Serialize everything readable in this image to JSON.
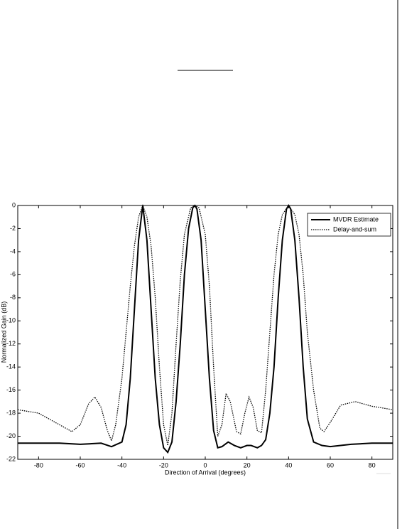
{
  "chart_data": {
    "type": "line",
    "xlabel": "Direction of Arrival (degrees)",
    "ylabel": "Normalized Gain (dB)",
    "xlim": [
      -90,
      90
    ],
    "ylim": [
      -22,
      0
    ],
    "xticks": [
      -80,
      -60,
      -40,
      -20,
      0,
      20,
      40,
      60,
      80
    ],
    "yticks": [
      0,
      -2,
      -4,
      -6,
      -8,
      -10,
      -12,
      -14,
      -16,
      -18,
      -20,
      -22
    ],
    "grid": false,
    "legend": "upper right",
    "series": [
      {
        "name": "MVDR Estimate",
        "color": "#000000",
        "style": "solid",
        "x": [
          -90,
          -70,
          -60,
          -50,
          -45,
          -40,
          -38,
          -36,
          -34,
          -32,
          -30,
          -28,
          -26,
          -24,
          -22,
          -20,
          -18,
          -16,
          -14,
          -12,
          -10,
          -8,
          -6,
          -5,
          -4,
          -2,
          0,
          2,
          4,
          6,
          8,
          11,
          14,
          17,
          20,
          22,
          25,
          27,
          29,
          31,
          33,
          35,
          37,
          39,
          40,
          41,
          43,
          45,
          47,
          49,
          52,
          56,
          60,
          70,
          80,
          90
        ],
        "values": [
          -20.6,
          -20.6,
          -20.7,
          -20.6,
          -20.9,
          -20.5,
          -19,
          -15,
          -9,
          -3,
          0,
          -3,
          -9,
          -15,
          -19,
          -21,
          -21.4,
          -20.5,
          -17,
          -12,
          -6,
          -2,
          -0.2,
          0,
          -0.3,
          -3,
          -9,
          -15,
          -19.5,
          -21,
          -20.9,
          -20.5,
          -20.8,
          -21,
          -20.8,
          -20.8,
          -21,
          -20.8,
          -20.3,
          -18,
          -14,
          -8,
          -3,
          -0.3,
          0,
          -0.3,
          -3,
          -8,
          -14,
          -18.5,
          -20.5,
          -20.8,
          -20.9,
          -20.7,
          -20.6,
          -20.6
        ]
      },
      {
        "name": "Delay-and-sum",
        "color": "#000000",
        "style": "dotted",
        "x": [
          -90,
          -80,
          -70,
          -64,
          -60,
          -56,
          -53,
          -50,
          -47,
          -45,
          -43,
          -40,
          -38,
          -36,
          -34,
          -32,
          -30,
          -28,
          -26,
          -24,
          -22,
          -20,
          -18,
          -16,
          -14,
          -12,
          -10,
          -7,
          -5,
          -3,
          0,
          2,
          4,
          6,
          8,
          10,
          12,
          15,
          17,
          19,
          21,
          23,
          25,
          27,
          29,
          31,
          33,
          35,
          37,
          40,
          43,
          45,
          47,
          49,
          52,
          55,
          57,
          60,
          65,
          72,
          80,
          90
        ],
        "values": [
          -17.7,
          -18,
          -19,
          -19.6,
          -19,
          -17.2,
          -16.6,
          -17.5,
          -19.5,
          -20.4,
          -19,
          -15,
          -11,
          -7,
          -3.5,
          -1,
          0,
          -1,
          -3.5,
          -8,
          -14,
          -19,
          -20.8,
          -18,
          -12,
          -6.5,
          -2.5,
          -0.2,
          0,
          -0.2,
          -2.5,
          -7,
          -14,
          -20,
          -19,
          -16.3,
          -17,
          -19.6,
          -19.8,
          -18,
          -16.6,
          -17.5,
          -19.5,
          -19.7,
          -16,
          -11,
          -6,
          -2.5,
          -0.8,
          0,
          -0.8,
          -2.5,
          -6,
          -11,
          -16,
          -19.3,
          -19.6,
          -18.8,
          -17.3,
          -17,
          -17.4,
          -17.7
        ]
      }
    ]
  }
}
